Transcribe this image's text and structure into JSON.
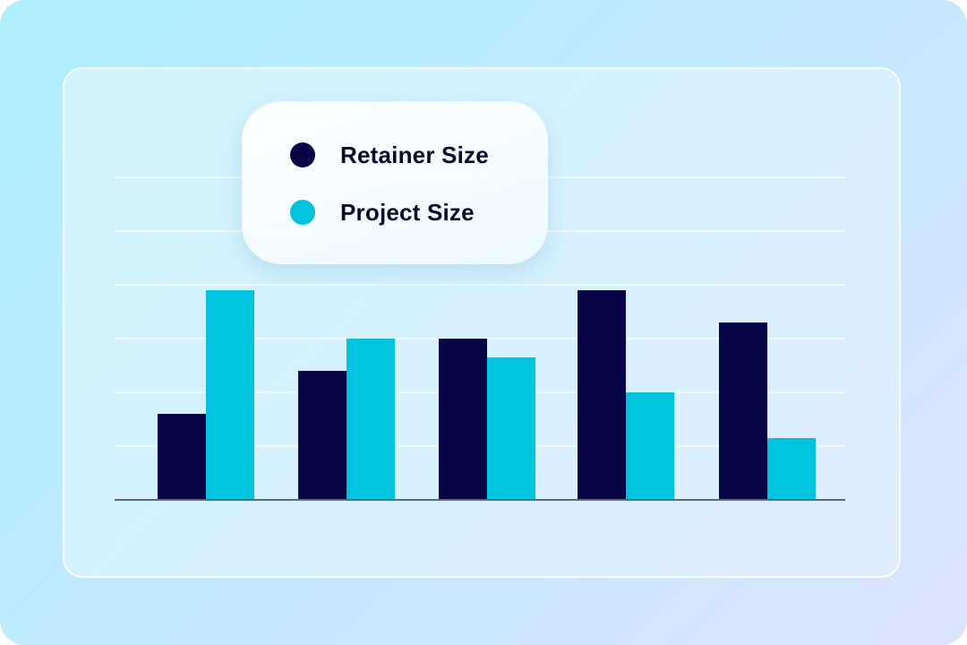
{
  "colors": {
    "retainer": "#080547",
    "project": "#00c4de",
    "gridline": "#ffffff",
    "axis": "#5e6b7a"
  },
  "legend": {
    "items": [
      {
        "label": "Retainer Size",
        "color": "#080547"
      },
      {
        "label": "Project Size",
        "color": "#00c4de"
      }
    ]
  },
  "chart_data": {
    "type": "bar",
    "title": "",
    "xlabel": "",
    "ylabel": "",
    "ylim": [
      0,
      6
    ],
    "grid": true,
    "legend_position": "top-left",
    "categories": [
      "",
      "",
      "",
      "",
      ""
    ],
    "series": [
      {
        "name": "Retainer Size",
        "values": [
          1.6,
          2.4,
          3.0,
          3.9,
          3.3
        ]
      },
      {
        "name": "Project Size",
        "values": [
          3.9,
          3.0,
          2.65,
          2.0,
          1.15
        ]
      }
    ]
  }
}
